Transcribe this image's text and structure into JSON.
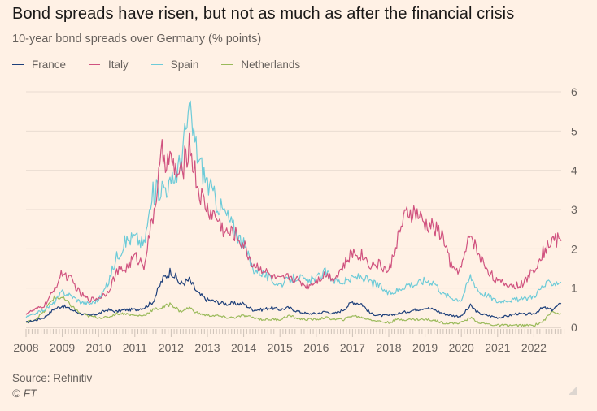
{
  "header": {
    "title": "Bond spreads have risen, but not as much as after the financial crisis",
    "subtitle": "10-year bond spreads over Germany (% points)"
  },
  "footer": {
    "source": "Source: Refinitiv",
    "copyright": "© FT"
  },
  "chart_data": {
    "type": "line",
    "title": "Bond spreads have risen, but not as much as after the financial crisis",
    "subtitle": "10-year bond spreads over Germany (% points)",
    "xlabel": "",
    "ylabel": "",
    "xlim": [
      2008,
      2022.85
    ],
    "ylim": [
      0,
      6
    ],
    "x_ticks": [
      2008,
      2009,
      2010,
      2011,
      2012,
      2013,
      2014,
      2015,
      2016,
      2017,
      2018,
      2019,
      2020,
      2021,
      2022
    ],
    "x_tick_labels": [
      "2008",
      "2009",
      "2010",
      "2011",
      "2012",
      "2013",
      "2014",
      "2015",
      "2016",
      "2017",
      "2018",
      "2019",
      "2020",
      "2021",
      "2022"
    ],
    "y_ticks": [
      0,
      1,
      2,
      3,
      4,
      5,
      6
    ],
    "y_tick_labels": [
      "0",
      "1",
      "2",
      "3",
      "4",
      "5",
      "6"
    ],
    "y_axis_side": "right",
    "grid": true,
    "legend_position": "top-left",
    "x": [
      2008.0,
      2008.25,
      2008.5,
      2008.75,
      2009.0,
      2009.25,
      2009.5,
      2009.75,
      2010.0,
      2010.25,
      2010.5,
      2010.75,
      2011.0,
      2011.25,
      2011.5,
      2011.75,
      2012.0,
      2012.25,
      2012.5,
      2012.75,
      2013.0,
      2013.25,
      2013.5,
      2013.75,
      2014.0,
      2014.25,
      2014.5,
      2014.75,
      2015.0,
      2015.25,
      2015.5,
      2015.75,
      2016.0,
      2016.25,
      2016.5,
      2016.75,
      2017.0,
      2017.25,
      2017.5,
      2017.75,
      2018.0,
      2018.25,
      2018.5,
      2018.75,
      2019.0,
      2019.25,
      2019.5,
      2019.75,
      2020.0,
      2020.25,
      2020.5,
      2020.75,
      2021.0,
      2021.25,
      2021.5,
      2021.75,
      2022.0,
      2022.25,
      2022.5,
      2022.75
    ],
    "series": [
      {
        "name": "France",
        "color": "#1d3f7a",
        "values": [
          0.12,
          0.18,
          0.25,
          0.45,
          0.55,
          0.45,
          0.35,
          0.3,
          0.35,
          0.45,
          0.4,
          0.45,
          0.45,
          0.5,
          0.65,
          1.2,
          1.45,
          1.1,
          1.2,
          0.85,
          0.7,
          0.65,
          0.6,
          0.6,
          0.6,
          0.45,
          0.45,
          0.5,
          0.45,
          0.5,
          0.4,
          0.35,
          0.35,
          0.4,
          0.35,
          0.45,
          0.65,
          0.6,
          0.35,
          0.3,
          0.3,
          0.35,
          0.4,
          0.45,
          0.5,
          0.45,
          0.35,
          0.3,
          0.28,
          0.55,
          0.35,
          0.3,
          0.25,
          0.28,
          0.35,
          0.33,
          0.35,
          0.5,
          0.45,
          0.6
        ]
      },
      {
        "name": "Italy",
        "color": "#d0527f",
        "values": [
          0.35,
          0.45,
          0.55,
          0.9,
          1.4,
          1.2,
          0.85,
          0.7,
          0.75,
          0.9,
          1.4,
          1.5,
          1.8,
          1.6,
          2.8,
          4.4,
          4.2,
          3.8,
          4.7,
          3.5,
          3.0,
          2.8,
          2.4,
          2.4,
          2.1,
          1.6,
          1.5,
          1.3,
          1.2,
          1.3,
          1.2,
          1.05,
          1.2,
          1.35,
          1.25,
          1.55,
          1.9,
          1.85,
          1.6,
          1.6,
          1.4,
          2.3,
          2.9,
          2.9,
          2.6,
          2.55,
          2.3,
          1.45,
          1.5,
          2.4,
          1.8,
          1.45,
          1.15,
          1.1,
          1.05,
          1.15,
          1.5,
          1.9,
          2.25,
          2.2
        ]
      },
      {
        "name": "Spain",
        "color": "#6dcbd8",
        "values": [
          0.25,
          0.35,
          0.45,
          0.6,
          0.9,
          0.8,
          0.65,
          0.6,
          0.7,
          1.1,
          1.8,
          2.2,
          2.3,
          2.1,
          3.4,
          3.6,
          3.6,
          4.2,
          5.5,
          4.3,
          3.7,
          3.2,
          2.9,
          2.5,
          2.1,
          1.5,
          1.4,
          1.2,
          1.1,
          1.2,
          1.3,
          1.15,
          1.25,
          1.4,
          1.2,
          1.15,
          1.25,
          1.3,
          1.15,
          1.05,
          0.85,
          0.95,
          1.1,
          1.1,
          1.2,
          1.15,
          0.85,
          0.75,
          0.7,
          1.3,
          0.9,
          0.8,
          0.65,
          0.7,
          0.7,
          0.72,
          0.8,
          1.05,
          1.15,
          1.15
        ]
      },
      {
        "name": "Netherlands",
        "color": "#9aba5a",
        "values": [
          0.12,
          0.2,
          0.4,
          0.75,
          0.75,
          0.55,
          0.35,
          0.28,
          0.25,
          0.25,
          0.35,
          0.35,
          0.3,
          0.3,
          0.45,
          0.5,
          0.6,
          0.4,
          0.5,
          0.35,
          0.3,
          0.3,
          0.25,
          0.25,
          0.3,
          0.25,
          0.2,
          0.2,
          0.2,
          0.3,
          0.22,
          0.2,
          0.2,
          0.25,
          0.2,
          0.2,
          0.3,
          0.25,
          0.2,
          0.15,
          0.12,
          0.2,
          0.2,
          0.2,
          0.2,
          0.18,
          0.12,
          0.1,
          0.12,
          0.25,
          0.12,
          0.08,
          0.05,
          0.05,
          0.05,
          0.05,
          0.05,
          0.15,
          0.4,
          0.35
        ]
      }
    ]
  }
}
